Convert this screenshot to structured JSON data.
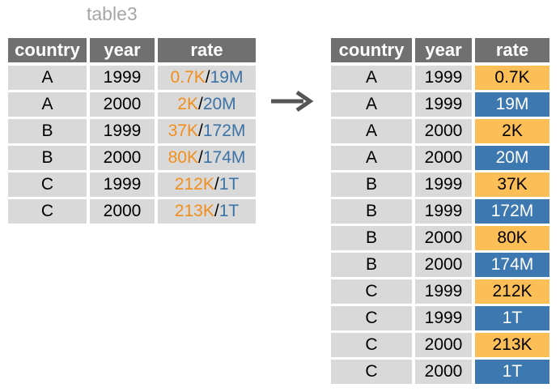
{
  "colors": {
    "header_bg": "#707070",
    "cell_bg": "#d9d9d9",
    "cases_color": "#f28e1c",
    "population_color": "#3c72a6",
    "cases_fill": "#fcbe56",
    "population_fill": "#3d78b0",
    "arrow": "#555555"
  },
  "left_table": {
    "caption": "table3",
    "headers": [
      "country",
      "year",
      "rate"
    ],
    "rows": [
      {
        "country": "A",
        "year": "1999",
        "cases": "0.7K",
        "sep": "/",
        "population": "19M"
      },
      {
        "country": "A",
        "year": "2000",
        "cases": "2K",
        "sep": "/",
        "population": "20M"
      },
      {
        "country": "B",
        "year": "1999",
        "cases": "37K",
        "sep": "/",
        "population": "172M"
      },
      {
        "country": "B",
        "year": "2000",
        "cases": "80K",
        "sep": "/",
        "population": "174M"
      },
      {
        "country": "C",
        "year": "1999",
        "cases": "212K",
        "sep": "/",
        "population": "1T"
      },
      {
        "country": "C",
        "year": "2000",
        "cases": "213K",
        "sep": "/",
        "population": "1T"
      }
    ]
  },
  "arrow_icon": "right-arrow-icon",
  "right_table": {
    "headers": [
      "country",
      "year",
      "rate"
    ],
    "rows": [
      {
        "country": "A",
        "year": "1999",
        "rate": "0.7K",
        "kind": "cases"
      },
      {
        "country": "A",
        "year": "1999",
        "rate": "19M",
        "kind": "population"
      },
      {
        "country": "A",
        "year": "2000",
        "rate": "2K",
        "kind": "cases"
      },
      {
        "country": "A",
        "year": "2000",
        "rate": "20M",
        "kind": "population"
      },
      {
        "country": "B",
        "year": "1999",
        "rate": "37K",
        "kind": "cases"
      },
      {
        "country": "B",
        "year": "1999",
        "rate": "172M",
        "kind": "population"
      },
      {
        "country": "B",
        "year": "2000",
        "rate": "80K",
        "kind": "cases"
      },
      {
        "country": "B",
        "year": "2000",
        "rate": "174M",
        "kind": "population"
      },
      {
        "country": "C",
        "year": "1999",
        "rate": "212K",
        "kind": "cases"
      },
      {
        "country": "C",
        "year": "1999",
        "rate": "1T",
        "kind": "population"
      },
      {
        "country": "C",
        "year": "2000",
        "rate": "213K",
        "kind": "cases"
      },
      {
        "country": "C",
        "year": "2000",
        "rate": "1T",
        "kind": "population"
      }
    ]
  }
}
